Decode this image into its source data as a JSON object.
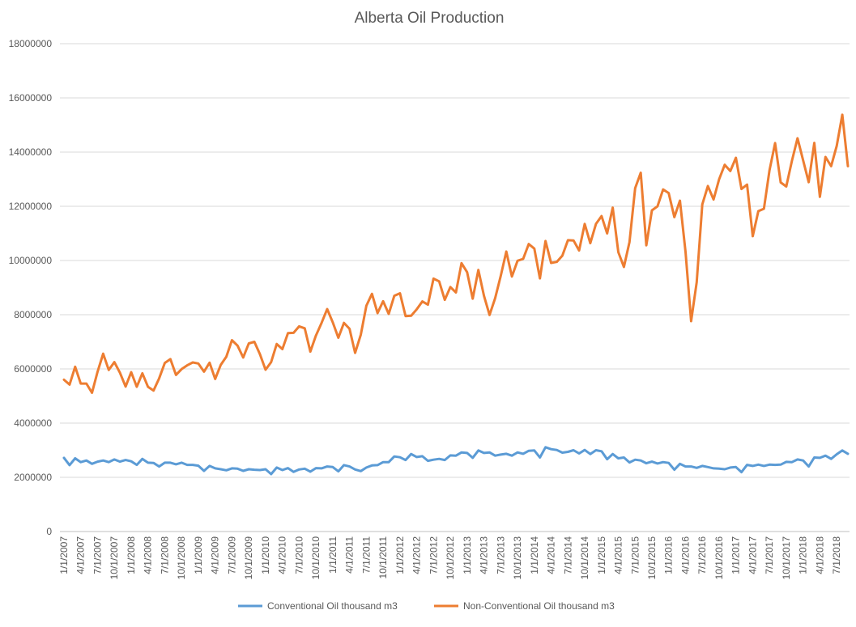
{
  "chart_data": {
    "type": "line",
    "title": "Alberta Oil Production",
    "xlabel": "",
    "ylabel": "",
    "ylim": [
      0,
      18000000
    ],
    "yticks": [
      0,
      2000000,
      4000000,
      6000000,
      8000000,
      10000000,
      12000000,
      14000000,
      16000000,
      18000000
    ],
    "ytick_labels": [
      "0",
      "2000000",
      "4000000",
      "6000000",
      "8000000",
      "10000000",
      "12000000",
      "14000000",
      "16000000",
      "18000000"
    ],
    "x_start": "1/1/2007",
    "xtick_labels": [
      "1/1/2007",
      "4/1/2007",
      "7/1/2007",
      "10/1/2007",
      "1/1/2008",
      "4/1/2008",
      "7/1/2008",
      "10/1/2008",
      "1/1/2009",
      "4/1/2009",
      "7/1/2009",
      "10/1/2009",
      "1/1/2010",
      "4/1/2010",
      "7/1/2010",
      "10/1/2010",
      "1/1/2011",
      "4/1/2011",
      "7/1/2011",
      "10/1/2011",
      "1/1/2012",
      "4/1/2012",
      "7/1/2012",
      "10/1/2012",
      "1/1/2013",
      "4/1/2013",
      "7/1/2013",
      "10/1/2013",
      "1/1/2014",
      "4/1/2014",
      "7/1/2014",
      "10/1/2014",
      "1/1/2015",
      "4/1/2015",
      "7/1/2015",
      "10/1/2015",
      "1/1/2016",
      "4/1/2016",
      "7/1/2016",
      "10/1/2016",
      "1/1/2017",
      "4/1/2017",
      "7/1/2017",
      "10/1/2017",
      "1/1/2018",
      "4/1/2018",
      "7/1/2018"
    ],
    "grid": true,
    "legend_position": "bottom",
    "series": [
      {
        "name": "Conventional Oil thousand m3",
        "color": "#5b9bd5",
        "values": [
          2720000,
          2450000,
          2700000,
          2560000,
          2620000,
          2500000,
          2580000,
          2620000,
          2560000,
          2660000,
          2580000,
          2640000,
          2590000,
          2460000,
          2680000,
          2540000,
          2530000,
          2400000,
          2540000,
          2540000,
          2480000,
          2540000,
          2460000,
          2460000,
          2430000,
          2240000,
          2420000,
          2330000,
          2300000,
          2260000,
          2330000,
          2320000,
          2240000,
          2300000,
          2280000,
          2270000,
          2300000,
          2120000,
          2360000,
          2270000,
          2340000,
          2200000,
          2290000,
          2320000,
          2210000,
          2340000,
          2330000,
          2400000,
          2380000,
          2220000,
          2450000,
          2400000,
          2290000,
          2230000,
          2360000,
          2440000,
          2450000,
          2560000,
          2560000,
          2770000,
          2740000,
          2640000,
          2860000,
          2750000,
          2780000,
          2610000,
          2650000,
          2680000,
          2640000,
          2810000,
          2800000,
          2920000,
          2900000,
          2720000,
          2990000,
          2900000,
          2920000,
          2800000,
          2840000,
          2870000,
          2800000,
          2920000,
          2870000,
          2980000,
          2990000,
          2730000,
          3110000,
          3040000,
          3010000,
          2910000,
          2940000,
          3000000,
          2880000,
          3010000,
          2860000,
          3000000,
          2960000,
          2670000,
          2860000,
          2700000,
          2730000,
          2550000,
          2650000,
          2620000,
          2520000,
          2580000,
          2510000,
          2560000,
          2530000,
          2280000,
          2500000,
          2400000,
          2400000,
          2350000,
          2420000,
          2380000,
          2330000,
          2320000,
          2300000,
          2360000,
          2380000,
          2190000,
          2460000,
          2420000,
          2470000,
          2420000,
          2470000,
          2460000,
          2470000,
          2570000,
          2560000,
          2660000,
          2620000,
          2400000,
          2730000,
          2720000,
          2800000,
          2680000,
          2850000,
          2990000,
          2870000
        ]
      },
      {
        "name": "Non-Conventional Oil thousand m3",
        "color": "#ed7d31",
        "values": [
          5600000,
          5420000,
          6080000,
          5460000,
          5460000,
          5120000,
          5900000,
          6560000,
          5960000,
          6250000,
          5860000,
          5350000,
          5880000,
          5340000,
          5840000,
          5340000,
          5200000,
          5650000,
          6220000,
          6360000,
          5780000,
          5990000,
          6130000,
          6240000,
          6200000,
          5900000,
          6230000,
          5630000,
          6150000,
          6450000,
          7060000,
          6860000,
          6420000,
          6940000,
          7000000,
          6540000,
          5970000,
          6250000,
          6920000,
          6730000,
          7320000,
          7330000,
          7570000,
          7500000,
          6640000,
          7230000,
          7700000,
          8210000,
          7720000,
          7150000,
          7700000,
          7480000,
          6590000,
          7260000,
          8330000,
          8770000,
          8060000,
          8500000,
          8030000,
          8700000,
          8790000,
          7950000,
          7960000,
          8200000,
          8490000,
          8370000,
          9330000,
          9230000,
          8550000,
          9020000,
          8820000,
          9900000,
          9570000,
          8590000,
          9650000,
          8700000,
          7990000,
          8610000,
          9430000,
          10330000,
          9410000,
          9990000,
          10060000,
          10610000,
          10440000,
          9340000,
          10720000,
          9910000,
          9950000,
          10180000,
          10750000,
          10740000,
          10370000,
          11350000,
          10640000,
          11350000,
          11640000,
          11000000,
          11950000,
          10310000,
          9760000,
          10680000,
          12670000,
          13240000,
          10560000,
          11850000,
          12000000,
          12620000,
          12490000,
          11600000,
          12210000,
          10320000,
          7760000,
          9200000,
          12070000,
          12750000,
          12250000,
          13000000,
          13530000,
          13300000,
          13790000,
          12640000,
          12800000,
          10900000,
          11820000,
          11910000,
          13330000,
          14330000,
          12880000,
          12730000,
          13680000,
          14510000,
          13700000,
          12890000,
          14340000,
          12350000,
          13820000,
          13480000,
          14230000,
          15380000,
          13480000
        ]
      }
    ]
  }
}
